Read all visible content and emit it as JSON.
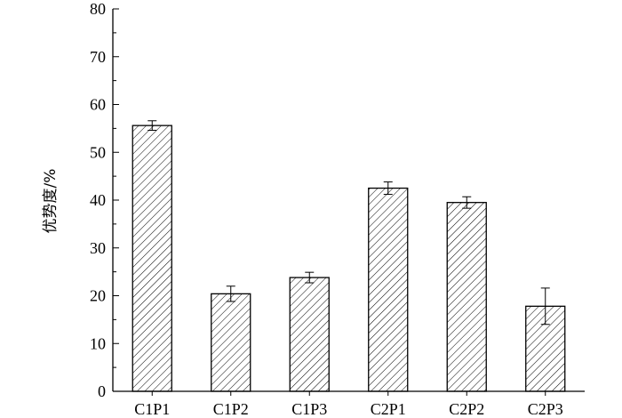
{
  "chart_data": {
    "type": "bar",
    "categories": [
      "C1P1",
      "C1P2",
      "C1P3",
      "C2P1",
      "C2P2",
      "C2P3"
    ],
    "values": [
      55.6,
      20.4,
      23.8,
      42.5,
      39.5,
      17.8
    ],
    "error_bars": [
      1.0,
      1.6,
      1.1,
      1.3,
      1.2,
      3.8
    ],
    "title": "",
    "xlabel": "",
    "ylabel": "优势度/%",
    "ylim": [
      0,
      80
    ],
    "yticks": [
      "0",
      "10",
      "20",
      "30",
      "40",
      "50",
      "60",
      "70",
      "80"
    ],
    "grid": false,
    "bar_fill": "hatched",
    "colors": {
      "bar_stroke": "#000000",
      "hatch": "#000000",
      "background": "#ffffff"
    }
  }
}
